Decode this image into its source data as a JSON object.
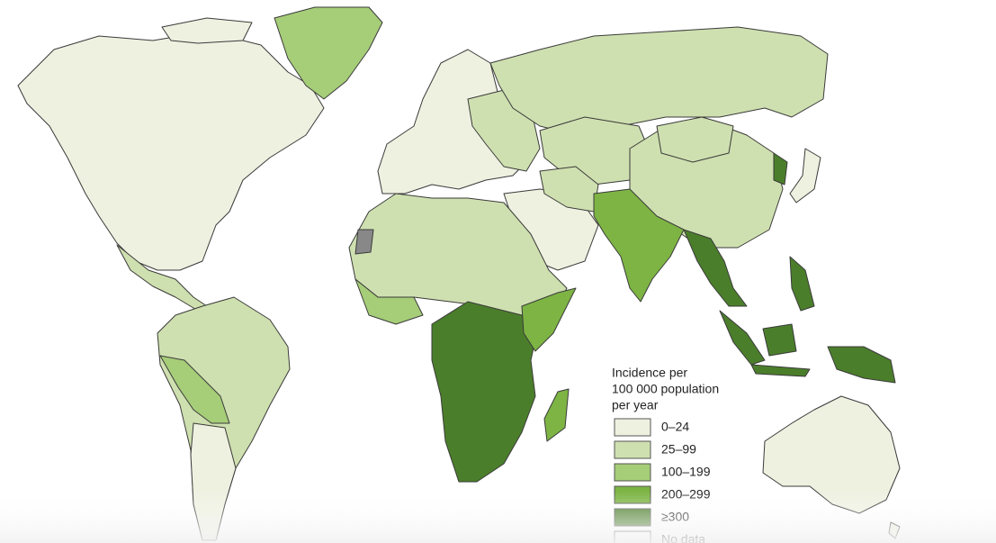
{
  "legend": {
    "title_lines": [
      "Incidence per",
      "100 000 population",
      "per year"
    ],
    "items": [
      {
        "label": "0–24",
        "color": "#eef1e0"
      },
      {
        "label": "25–99",
        "color": "#cfe0b0"
      },
      {
        "label": "100–199",
        "color": "#a6cd78"
      },
      {
        "label": "200–299",
        "color": "#7db444"
      },
      {
        "label": "≥300",
        "color": "#4b7e2b"
      },
      {
        "label": "No data",
        "color": "#ffffff"
      }
    ]
  }
}
